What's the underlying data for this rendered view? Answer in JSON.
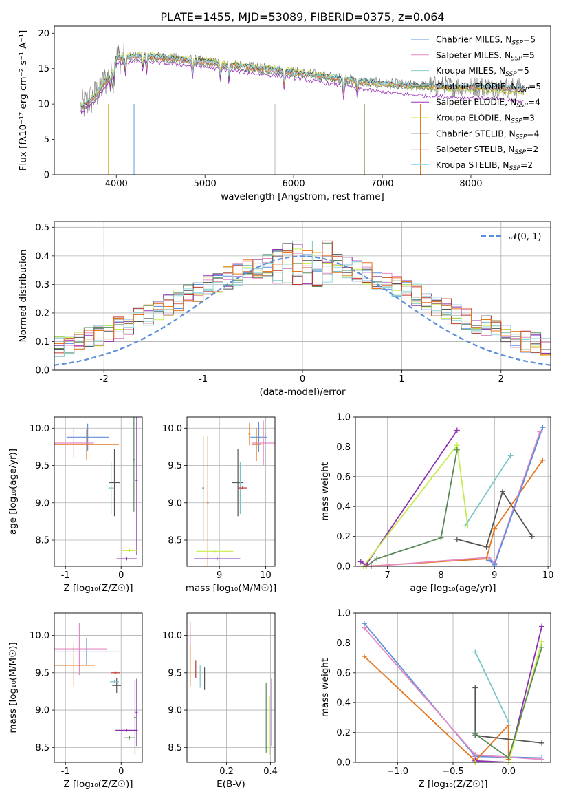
{
  "figure": {
    "title": "PLATE=1455, MJD=53089, FIBERID=0375, z=0.064"
  },
  "colors": {
    "model_colors": [
      "#6699dd",
      "#e589c4",
      "#8ccfcf",
      "#5a8a5a",
      "#9933bb",
      "#d4e040",
      "#444444",
      "#bb2222",
      "#88dde8"
    ],
    "fit_colors": [
      "#5b8fe0",
      "#e58ac3",
      "#7cc4c4",
      "#5a8a5a",
      "#8e2fae",
      "#c7ec4a",
      "#555555",
      "#c0392b",
      "#93d9e3"
    ],
    "data_gray": "#7f7f7f",
    "normal_curve": "#5b8fd9",
    "orange": "#e6761e"
  },
  "chart_data": [
    {
      "id": "spectrum",
      "type": "line",
      "title": "PLATE=1455, MJD=53089, FIBERID=0375, z=0.064",
      "xlabel": "wavelength [Angstrom, rest frame]",
      "ylabel": "Flux [fλ10⁻¹⁷ erg cm⁻² s⁻¹ A⁻¹]",
      "xlim": [
        3300,
        8900
      ],
      "ylim": [
        0,
        21
      ],
      "xticks": [
        4000,
        5000,
        6000,
        7000,
        8000
      ],
      "yticks": [
        0,
        5,
        10,
        15,
        20
      ],
      "legend_position": "top-right",
      "series": [
        {
          "name": "Chabrier MILES, N_SSP=5"
        },
        {
          "name": "Salpeter MILES, N_SSP=5"
        },
        {
          "name": "Kroupa MILES, N_SSP=5"
        },
        {
          "name": "Chabrier ELODIE, N_SSP=5"
        },
        {
          "name": "Salpeter ELODIE, N_SSP=4"
        },
        {
          "name": "Kroupa ELODIE, N_SSP=3"
        },
        {
          "name": "Chabrier STELIB, N_SSP=4"
        },
        {
          "name": "Salpeter STELIB, N_SSP=2"
        },
        {
          "name": "Kroupa STELIB, N_SSP=2"
        }
      ],
      "continuum_knots": {
        "x": [
          3600,
          3750,
          3950,
          4000,
          4300,
          4600,
          5000,
          5500,
          5800,
          6000,
          6300,
          6600,
          6900,
          7100,
          7400,
          7700,
          8000,
          8300,
          8600
        ],
        "y": [
          9.5,
          11,
          14.5,
          16.5,
          16.8,
          16.5,
          16.0,
          15.2,
          14.8,
          14.5,
          14.0,
          13.5,
          13.0,
          12.8,
          12.6,
          12.5,
          12.5,
          12.4,
          12.2
        ]
      }
    },
    {
      "id": "residuals",
      "type": "line",
      "xlabel": "(data-model)/error",
      "ylabel": "Normed distribution",
      "xlim": [
        -2.5,
        2.5
      ],
      "ylim": [
        0,
        0.52
      ],
      "xticks": [
        -2,
        -1,
        0,
        1,
        2
      ],
      "yticks": [
        0.0,
        0.1,
        0.2,
        0.3,
        0.4,
        0.5
      ],
      "legend": "𝒩(0, 1)",
      "legend_position": "top-right",
      "grid": true,
      "bin_width": 0.1,
      "normal": {
        "mean": 0,
        "sigma": 1
      }
    },
    {
      "id": "age_vs_Z",
      "type": "scatter",
      "xlabel": "Z [log₁₀(Z/Z☉)]",
      "ylabel": "age  [log₁₀(age/yr)]",
      "xlim": [
        -1.2,
        0.38
      ],
      "ylim": [
        8.15,
        10.15
      ],
      "xticks": [
        -1,
        0
      ],
      "yticks": [
        8.5,
        9.0,
        9.5,
        10.0
      ],
      "grid": true,
      "points": [
        {
          "x": -0.6,
          "y": 9.88,
          "xerr": 0.38,
          "yerr": 0.18,
          "c": 0
        },
        {
          "x": -0.85,
          "y": 9.8,
          "xerr": 0.36,
          "yerr": 0.2,
          "c": 1
        },
        {
          "x": -0.62,
          "y": 9.78,
          "xerr": 0.58,
          "yerr": 0.2,
          "c": 9
        },
        {
          "x": -0.12,
          "y": 9.27,
          "xerr": 0.1,
          "yerr": 0.45,
          "c": 6
        },
        {
          "x": -0.18,
          "y": 9.2,
          "xerr": 0.05,
          "yerr": 0.35,
          "c": 2
        },
        {
          "x": 0.23,
          "y": 9.58,
          "xerr": 0.02,
          "yerr": 0.7,
          "c": 3
        },
        {
          "x": 0.28,
          "y": 9.3,
          "xerr": 0.02,
          "yerr": 1.0,
          "c": 4
        },
        {
          "x": 0.15,
          "y": 8.36,
          "xerr": 0.13,
          "yerr": 0.02,
          "c": 5
        },
        {
          "x": 0.1,
          "y": 8.25,
          "xerr": 0.18,
          "yerr": 0.02,
          "c": 4
        }
      ]
    },
    {
      "id": "age_vs_mass",
      "type": "scatter",
      "xlabel": "mass [log₁₀(M/M☉)]",
      "ylabel": "",
      "xlim": [
        8.3,
        10.2
      ],
      "ylim": [
        8.15,
        10.15
      ],
      "xticks": [
        9,
        10
      ],
      "yticks": [
        8.5,
        9.0,
        9.5,
        10.0
      ],
      "grid": true,
      "points": [
        {
          "x": 9.85,
          "y": 9.88,
          "xerr": 0.18,
          "yerr": 0.2,
          "c": 0
        },
        {
          "x": 9.95,
          "y": 9.8,
          "xerr": 0.25,
          "yerr": 0.3,
          "c": 1
        },
        {
          "x": 9.8,
          "y": 9.78,
          "xerr": 0.1,
          "yerr": 0.22,
          "c": 9
        },
        {
          "x": 9.65,
          "y": 9.92,
          "xerr": 0.02,
          "yerr": 0.15,
          "c": 9
        },
        {
          "x": 9.4,
          "y": 9.27,
          "xerr": 0.12,
          "yerr": 0.45,
          "c": 6
        },
        {
          "x": 9.45,
          "y": 9.2,
          "xerr": 0.05,
          "yerr": 0.35,
          "c": 2
        },
        {
          "x": 9.5,
          "y": 9.2,
          "xerr": 0.1,
          "yerr": 0.02,
          "c": 7
        },
        {
          "x": 8.65,
          "y": 9.2,
          "xerr": 0.02,
          "yerr": 0.7,
          "c": 3
        },
        {
          "x": 8.75,
          "y": 9.0,
          "xerr": 0.02,
          "yerr": 0.9,
          "c": 9
        },
        {
          "x": 8.9,
          "y": 8.35,
          "xerr": 0.4,
          "yerr": 0.02,
          "c": 5
        },
        {
          "x": 8.95,
          "y": 8.25,
          "xerr": 0.5,
          "yerr": 0.02,
          "c": 4
        }
      ]
    },
    {
      "id": "massweight_vs_age",
      "type": "line",
      "xlabel": "age  [log₁₀(age/yr)]",
      "ylabel": "mass weight",
      "xlim": [
        6.4,
        10.05
      ],
      "ylim": [
        0,
        1.0
      ],
      "xticks": [
        7,
        8,
        9,
        10
      ],
      "yticks": [
        0.0,
        0.2,
        0.4,
        0.6,
        0.8,
        1.0
      ],
      "grid": true,
      "lines": [
        {
          "c": 4,
          "x": [
            6.5,
            6.6,
            8.3
          ],
          "y": [
            0.03,
            0.01,
            0.91
          ]
        },
        {
          "c": 5,
          "x": [
            6.55,
            8.3,
            8.5
          ],
          "y": [
            0.0,
            0.81,
            0.27
          ]
        },
        {
          "c": 3,
          "x": [
            6.6,
            6.8,
            8.0,
            8.3
          ],
          "y": [
            0.0,
            0.05,
            0.19,
            0.78
          ]
        },
        {
          "c": 2,
          "x": [
            8.45,
            9.3
          ],
          "y": [
            0.27,
            0.74
          ]
        },
        {
          "c": 6,
          "x": [
            8.3,
            8.85,
            9.15,
            9.7
          ],
          "y": [
            0.18,
            0.13,
            0.5,
            0.2
          ]
        },
        {
          "c": 9,
          "x": [
            6.6,
            8.85,
            9.0,
            9.9
          ],
          "y": [
            0.0,
            0.05,
            0.25,
            0.71
          ]
        },
        {
          "c": 1,
          "x": [
            6.7,
            8.9,
            9.0,
            9.85
          ],
          "y": [
            0.0,
            0.06,
            0.02,
            0.9
          ]
        },
        {
          "c": 0,
          "x": [
            8.9,
            9.0,
            9.9
          ],
          "y": [
            0.04,
            0.01,
            0.93
          ]
        }
      ]
    },
    {
      "id": "mass_vs_Z",
      "type": "scatter",
      "xlabel": "Z [log₁₀(Z/Z☉)]",
      "ylabel": "mass [log₁₀(M/M☉)]",
      "xlim": [
        -1.2,
        0.38
      ],
      "ylim": [
        8.3,
        10.3
      ],
      "xticks": [
        -1,
        0
      ],
      "yticks": [
        8.5,
        9.0,
        9.5,
        10.0
      ],
      "grid": true,
      "points": [
        {
          "x": -0.62,
          "y": 9.78,
          "xerr": 0.58,
          "yerr": 0.18,
          "c": 0
        },
        {
          "x": -0.75,
          "y": 9.82,
          "xerr": 0.5,
          "yerr": 0.35,
          "c": 1
        },
        {
          "x": -0.85,
          "y": 9.6,
          "xerr": 0.38,
          "yerr": 0.28,
          "c": 9
        },
        {
          "x": -0.1,
          "y": 9.5,
          "xerr": 0.08,
          "yerr": 0.02,
          "c": 7
        },
        {
          "x": -0.08,
          "y": 9.33,
          "xerr": 0.08,
          "yerr": 0.1,
          "c": 6
        },
        {
          "x": -0.12,
          "y": 9.38,
          "xerr": 0.08,
          "yerr": 0.02,
          "c": 2
        },
        {
          "x": 0.25,
          "y": 8.9,
          "xerr": 0.02,
          "yerr": 0.5,
          "c": 3
        },
        {
          "x": 0.28,
          "y": 8.97,
          "xerr": 0.02,
          "yerr": 0.45,
          "c": 4
        },
        {
          "x": 0.1,
          "y": 8.73,
          "xerr": 0.2,
          "yerr": 0.02,
          "c": 4
        },
        {
          "x": 0.15,
          "y": 8.63,
          "xerr": 0.1,
          "yerr": 0.02,
          "c": 3
        }
      ]
    },
    {
      "id": "mass_vs_ebv",
      "type": "scatter",
      "xlabel": "E(B-V)",
      "ylabel": "",
      "xlim": [
        0.02,
        0.42
      ],
      "ylim": [
        8.3,
        10.3
      ],
      "xticks": [
        0.2,
        0.4
      ],
      "yticks": [
        8.5,
        9.0,
        9.5,
        10.0
      ],
      "grid": true,
      "points": [
        {
          "x": 0.035,
          "y": 9.9,
          "yerr": 0.28,
          "c": 1
        },
        {
          "x": 0.035,
          "y": 9.6,
          "yerr": 0.28,
          "c": 9
        },
        {
          "x": 0.06,
          "y": 9.55,
          "yerr": 0.12,
          "c": 7
        },
        {
          "x": 0.08,
          "y": 9.45,
          "yerr": 0.15,
          "c": 2
        },
        {
          "x": 0.1,
          "y": 9.42,
          "yerr": 0.15,
          "c": 6
        },
        {
          "x": 0.38,
          "y": 8.9,
          "yerr": 0.47,
          "c": 3
        },
        {
          "x": 0.395,
          "y": 8.8,
          "yerr": 0.4,
          "c": 5
        },
        {
          "x": 0.405,
          "y": 8.97,
          "yerr": 0.45,
          "c": 4
        }
      ]
    },
    {
      "id": "massweight_vs_Z",
      "type": "line",
      "xlabel": "Z [log₁₀(Z/Z☉)]",
      "ylabel": "mass weight",
      "xlim": [
        -1.38,
        0.38
      ],
      "ylim": [
        0,
        1.0
      ],
      "xticks": [
        -1.0,
        -0.5,
        0.0
      ],
      "yticks": [
        0.0,
        0.2,
        0.4,
        0.6,
        0.8,
        1.0
      ],
      "grid": true,
      "lines": [
        {
          "c": 0,
          "x": [
            -1.3,
            -0.3,
            0.3
          ],
          "y": [
            0.93,
            0.04,
            0.03
          ]
        },
        {
          "c": 1,
          "x": [
            -1.3,
            -0.3,
            0.3
          ],
          "y": [
            0.9,
            0.05,
            0.02
          ]
        },
        {
          "c": 9,
          "x": [
            -1.3,
            -0.3,
            0.0,
            0.0
          ],
          "y": [
            0.71,
            0.01,
            0.25,
            0.02
          ]
        },
        {
          "c": 2,
          "x": [
            -0.3,
            0.0
          ],
          "y": [
            0.74,
            0.27
          ]
        },
        {
          "c": 6,
          "x": [
            -0.3,
            -0.3,
            0.3
          ],
          "y": [
            0.5,
            0.18,
            0.13
          ]
        },
        {
          "c": 4,
          "x": [
            -0.3,
            0.0,
            0.3
          ],
          "y": [
            0.01,
            0.0,
            0.91
          ]
        },
        {
          "c": 5,
          "x": [
            -0.3,
            0.0,
            0.3
          ],
          "y": [
            0.0,
            0.0,
            0.81
          ]
        },
        {
          "c": 3,
          "x": [
            -0.3,
            0.0,
            0.3
          ],
          "y": [
            0.19,
            0.03,
            0.77
          ]
        }
      ]
    }
  ]
}
